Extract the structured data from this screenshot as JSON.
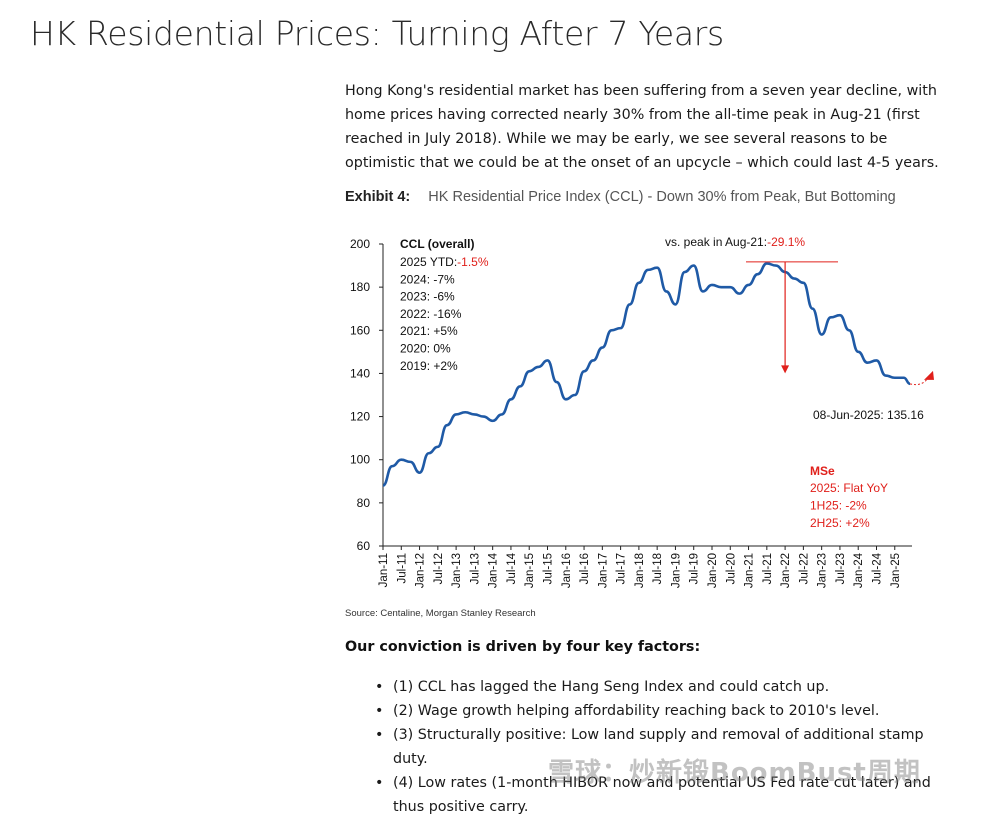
{
  "title": "HK Residential Prices: Turning After 7 Years",
  "intro": "Hong Kong's residential market has been suffering from a seven year decline, with home prices having corrected nearly 30% from the all-time peak in Aug-21 (first reached in July 2018). While we may be early, we see several reasons to be optimistic that we could be at the onset of an upcycle – which could last 4-5 years.",
  "exhibit": {
    "label": "Exhibit 4:",
    "title": "HK Residential Price Index (CCL) - Down 30% from Peak, But Bottoming"
  },
  "colors": {
    "line": "#1f5aa6",
    "annotation": "#e0201b",
    "text": "#111111"
  },
  "chart_data": {
    "type": "line",
    "series": [
      {
        "name": "CCL (overall)",
        "x": [
          "Jan-11",
          "Apr-11",
          "Jul-11",
          "Oct-11",
          "Jan-12",
          "Apr-12",
          "Jul-12",
          "Oct-12",
          "Jan-13",
          "Apr-13",
          "Jul-13",
          "Oct-13",
          "Jan-14",
          "Apr-14",
          "Jul-14",
          "Oct-14",
          "Jan-15",
          "Apr-15",
          "Jul-15",
          "Oct-15",
          "Jan-16",
          "Apr-16",
          "Jul-16",
          "Oct-16",
          "Jan-17",
          "Apr-17",
          "Jul-17",
          "Oct-17",
          "Jan-18",
          "Apr-18",
          "Jul-18",
          "Oct-18",
          "Jan-19",
          "Apr-19",
          "Jul-19",
          "Oct-19",
          "Jan-20",
          "Apr-20",
          "Jul-20",
          "Oct-20",
          "Jan-21",
          "Apr-21",
          "Jul-21",
          "Oct-21",
          "Jan-22",
          "Apr-22",
          "Jul-22",
          "Oct-22",
          "Jan-23",
          "Apr-23",
          "Jul-23",
          "Oct-23",
          "Jan-24",
          "Apr-24",
          "Jul-24",
          "Oct-24",
          "Jan-25",
          "Apr-25",
          "Jun-25"
        ],
        "values": [
          88,
          97,
          100,
          99,
          94,
          103,
          106,
          116,
          121,
          122,
          121,
          120,
          118,
          121,
          128,
          134,
          141,
          143,
          146,
          136,
          128,
          130,
          141,
          146,
          152,
          160,
          161,
          172,
          182,
          188,
          189,
          178,
          172,
          187,
          190,
          178,
          181,
          180,
          180,
          177,
          181,
          186,
          191,
          190,
          187,
          184,
          182,
          170,
          158,
          166,
          167,
          160,
          150,
          145,
          146,
          139,
          138,
          138,
          135.16
        ]
      }
    ],
    "x_tick_labels": [
      "Jan-11",
      "Jul-11",
      "Jan-12",
      "Jul-12",
      "Jan-13",
      "Jul-13",
      "Jan-14",
      "Jul-14",
      "Jan-15",
      "Jul-15",
      "Jan-16",
      "Jul-16",
      "Jan-17",
      "Jul-17",
      "Jan-18",
      "Jul-18",
      "Jan-19",
      "Jul-19",
      "Jan-20",
      "Jul-20",
      "Jan-21",
      "Jul-21",
      "Jan-22",
      "Jul-22",
      "Jan-23",
      "Jul-23",
      "Jan-24",
      "Jul-24",
      "Jan-25"
    ],
    "y_ticks": [
      60,
      80,
      100,
      120,
      140,
      160,
      180,
      200
    ],
    "ylim": [
      60,
      200
    ],
    "xlim": [
      "Jan-11",
      "Jun-25"
    ],
    "grid": false,
    "legend": {
      "title": "CCL (overall)",
      "items": [
        {
          "label": "2025 YTD:",
          "value": "-1.5%",
          "highlight": true
        },
        {
          "label": "2024: -7%"
        },
        {
          "label": "2023: -6%"
        },
        {
          "label": "2022: -16%"
        },
        {
          "label": "2021: +5%"
        },
        {
          "label": "2020: 0%"
        },
        {
          "label": "2019: +2%"
        }
      ]
    },
    "annotations": {
      "peak_label": "vs. peak in Aug-21:",
      "peak_value": "-29.1%",
      "peak_level": 191,
      "drop_arrow_from": "Jan-22",
      "drop_arrow_value": 140,
      "latest_label": "08-Jun-2025: 135.16",
      "mse_title": "MSe",
      "mse_lines": [
        "2025: Flat YoY",
        "1H25: -2%",
        "2H25: +2%"
      ]
    }
  },
  "source": "Source: Centaline, Morgan Stanley Research",
  "conviction": "Our conviction is driven by four key factors:",
  "bullet_glyph": "•",
  "factors": [
    "(1) CCL has lagged the Hang Seng Index and could catch up.",
    "(2) Wage growth helping affordability reaching back to 2010's level.",
    "(3) Structurally positive: Low land supply and removal of additional stamp duty.",
    "(4) Low rates (1-month HIBOR now and potential US Fed rate cut later) and thus positive carry."
  ],
  "watermark": "雪球：炒新锻BoomBust周期"
}
